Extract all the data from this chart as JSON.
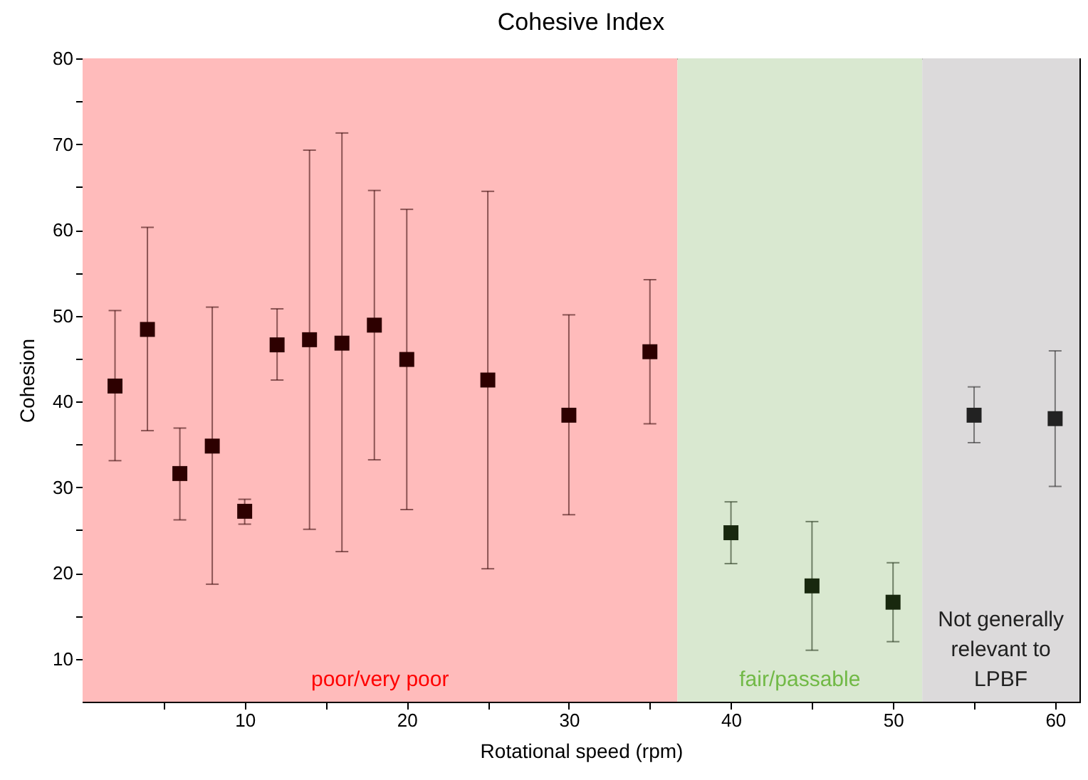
{
  "chart_data": {
    "type": "scatter",
    "title": "Cohesive Index",
    "xlabel": "Rotational speed (rpm)",
    "ylabel": "Cohesion",
    "xlim": [
      0,
      61.5
    ],
    "xticks": [
      {
        "value": 5,
        "label": null
      },
      10,
      {
        "value": 15,
        "label": null
      },
      20,
      {
        "value": 25,
        "label": null
      },
      30,
      {
        "value": 35,
        "label": null
      },
      40,
      {
        "value": 45,
        "label": null
      },
      50,
      {
        "value": 55,
        "label": null
      },
      60
    ],
    "ylim": [
      5,
      80
    ],
    "yticks": [
      10,
      {
        "value": 15,
        "label": null
      },
      20,
      {
        "value": 25,
        "label": null
      },
      30,
      {
        "value": 35,
        "label": null
      },
      40,
      {
        "value": 45,
        "label": null
      },
      50,
      {
        "value": 55,
        "label": null
      },
      60,
      {
        "value": 65,
        "label": null
      },
      70,
      {
        "value": 75,
        "label": null
      },
      80
    ],
    "grid": false,
    "legend": false,
    "marker": "square",
    "bands": [
      {
        "axis": "x",
        "from": 0,
        "to": 36.7,
        "label": "poor/very poor",
        "color": "#ffbbbb"
      },
      {
        "axis": "x",
        "from": 36.7,
        "to": 51.8,
        "label": "fair/passable",
        "color": "#d9e8d0"
      },
      {
        "axis": "x",
        "from": 51.8,
        "to": 61.5,
        "label": "Not generally\nrelevant to\nLPBF",
        "color": "#dcdadb"
      }
    ],
    "series": [
      {
        "color": "#2d0000",
        "x": [
          2,
          4,
          6,
          8,
          10,
          12,
          14,
          16,
          18,
          20,
          25,
          30,
          35
        ],
        "values": [
          41.8,
          48.4,
          31.6,
          34.8,
          27.2,
          46.6,
          47.2,
          46.8,
          48.9,
          44.9,
          42.5,
          38.4,
          45.8
        ],
        "errors": [
          [
            33.1,
            50.6
          ],
          [
            36.6,
            60.3
          ],
          [
            26.2,
            36.9
          ],
          [
            18.7,
            51.0
          ],
          [
            25.7,
            28.6
          ],
          [
            42.5,
            50.8
          ],
          [
            25.1,
            69.3
          ],
          [
            22.5,
            71.3
          ],
          [
            33.2,
            64.6
          ],
          [
            27.4,
            62.4
          ],
          [
            20.5,
            64.5
          ],
          [
            26.8,
            50.1
          ],
          [
            37.4,
            54.2
          ]
        ]
      },
      {
        "color": "#18280e",
        "x": [
          40,
          45,
          50
        ],
        "values": [
          24.7,
          18.5,
          16.6
        ],
        "errors": [
          [
            21.1,
            28.3
          ],
          [
            11.0,
            26.0
          ],
          [
            12.0,
            21.2
          ]
        ]
      },
      {
        "color": "#222222",
        "x": [
          55,
          60
        ],
        "values": [
          38.4,
          38.0
        ],
        "errors": [
          [
            35.2,
            41.7
          ],
          [
            30.1,
            45.9
          ]
        ]
      }
    ]
  }
}
